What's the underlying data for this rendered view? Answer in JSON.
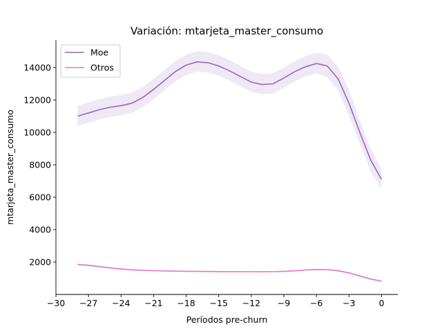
{
  "chart_data": {
    "type": "line",
    "title": "Variación: mtarjeta_master_consumo",
    "xlabel": "Períodos pre-churn",
    "ylabel": "mtarjeta_master_consumo",
    "xlim": [
      -30,
      1.5
    ],
    "ylim": [
      0,
      15700
    ],
    "xticks": [
      -30,
      -27,
      -24,
      -21,
      -18,
      -15,
      -12,
      -9,
      -6,
      -3,
      0
    ],
    "xtick_labels": [
      "−30",
      "−27",
      "−24",
      "−21",
      "−18",
      "−15",
      "−12",
      "−9",
      "−6",
      "−3",
      "0"
    ],
    "yticks": [
      2000,
      4000,
      6000,
      8000,
      10000,
      12000,
      14000
    ],
    "ytick_labels": [
      "2000",
      "4000",
      "6000",
      "8000",
      "10000",
      "12000",
      "14000"
    ],
    "grid": false,
    "legend_position": "top-left",
    "x": [
      -28,
      -27,
      -26,
      -25,
      -24,
      -23,
      -22,
      -21,
      -20,
      -19,
      -18,
      -17,
      -16,
      -15,
      -14,
      -13,
      -12,
      -11,
      -10,
      -9,
      -8,
      -7,
      -6,
      -5,
      -4,
      -3,
      -2,
      -1,
      0
    ],
    "series": [
      {
        "name": "Moe",
        "color": "#9467bd",
        "values": [
          11000,
          11200,
          11400,
          11550,
          11650,
          11800,
          12150,
          12650,
          13200,
          13750,
          14150,
          14350,
          14300,
          14100,
          13800,
          13450,
          13100,
          12950,
          13000,
          13350,
          13750,
          14050,
          14250,
          14100,
          13300,
          11800,
          10000,
          8300,
          7100
        ],
        "ci_lower": [
          10400,
          10600,
          10800,
          10950,
          11050,
          11200,
          11550,
          12050,
          12600,
          13150,
          13550,
          13750,
          13700,
          13500,
          13200,
          12850,
          12500,
          12350,
          12400,
          12750,
          13150,
          13450,
          13650,
          13400,
          12550,
          11050,
          9300,
          7600,
          6500
        ],
        "ci_upper": [
          11650,
          11850,
          12050,
          12200,
          12300,
          12450,
          12800,
          13300,
          13850,
          14400,
          14800,
          15000,
          14950,
          14750,
          14450,
          14100,
          13750,
          13600,
          13650,
          14000,
          14400,
          14700,
          14900,
          14800,
          14050,
          12600,
          10750,
          9000,
          7750
        ]
      },
      {
        "name": "Otros",
        "color": "#e377c2",
        "values": [
          1850,
          1800,
          1720,
          1640,
          1570,
          1520,
          1490,
          1470,
          1450,
          1440,
          1430,
          1420,
          1415,
          1410,
          1410,
          1410,
          1405,
          1400,
          1405,
          1420,
          1460,
          1510,
          1540,
          1530,
          1460,
          1330,
          1140,
          950,
          820
        ],
        "ci_lower": [
          1780,
          1730,
          1660,
          1590,
          1520,
          1480,
          1450,
          1430,
          1415,
          1405,
          1395,
          1385,
          1380,
          1375,
          1375,
          1375,
          1370,
          1365,
          1370,
          1385,
          1420,
          1465,
          1490,
          1480,
          1410,
          1280,
          1090,
          900,
          770
        ],
        "ci_upper": [
          1920,
          1870,
          1780,
          1690,
          1620,
          1560,
          1530,
          1510,
          1485,
          1475,
          1465,
          1455,
          1450,
          1445,
          1445,
          1445,
          1440,
          1435,
          1440,
          1455,
          1500,
          1555,
          1590,
          1580,
          1510,
          1380,
          1190,
          1000,
          870
        ]
      }
    ]
  }
}
